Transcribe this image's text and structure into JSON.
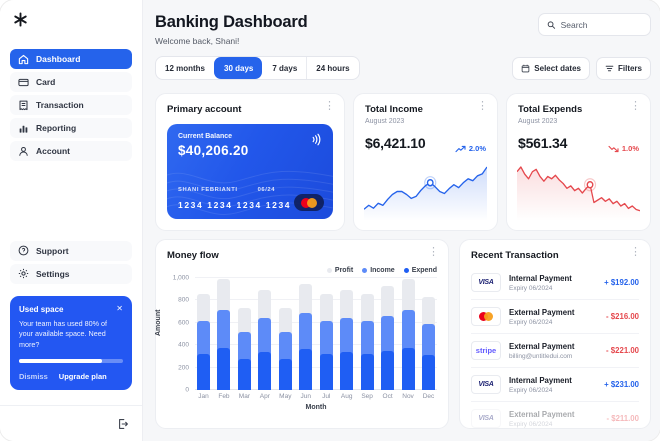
{
  "header": {
    "title": "Banking Dashboard",
    "subtitle": "Welcome back, Shani!",
    "search_placeholder": "Search"
  },
  "sidebar": {
    "nav": [
      {
        "label": "Dashboard",
        "active": true
      },
      {
        "label": "Card"
      },
      {
        "label": "Transaction"
      },
      {
        "label": "Reporting"
      },
      {
        "label": "Account"
      }
    ],
    "support_label": "Support",
    "settings_label": "Settings",
    "used_space": {
      "title": "Used space",
      "body": "Your team has used 80% of your available space. Need more?",
      "percent_used": "80%",
      "dismiss_label": "Dismiss",
      "upgrade_label": "Upgrade plan"
    }
  },
  "filters": {
    "ranges": [
      "12 months",
      "30 days",
      "7 days",
      "24 hours"
    ],
    "active_range": "30 days",
    "select_dates_label": "Select dates",
    "filters_label": "Filters"
  },
  "primary_account": {
    "title": "Primary account",
    "balance_label": "Current Balance",
    "balance": "$40,206.20",
    "card_holder": "SHANI FEBRIANTI",
    "card_expiry": "06/24",
    "card_number": "1234 1234 1234 1234"
  },
  "total_income": {
    "title": "Total Income",
    "period": "August 2023",
    "value": "$6,421.10",
    "change": "2.0%",
    "trend": "up"
  },
  "total_expends": {
    "title": "Total Expends",
    "period": "August 2023",
    "value": "$561.34",
    "change": "1.0%",
    "trend": "down"
  },
  "money_flow": {
    "title": "Money flow"
  },
  "transactions": {
    "title": "Recent Transaction",
    "rows": [
      {
        "brand": "visa",
        "brand_text": "VISA",
        "title": "Internal Payment",
        "subtitle": "Expiry 06/2024",
        "amount": "+ $192.00",
        "direction": "credit"
      },
      {
        "brand": "mastercard",
        "title": "External Payment",
        "subtitle": "Expiry 06/2024",
        "amount": "- $216.00",
        "direction": "debit"
      },
      {
        "brand": "stripe",
        "brand_text": "stripe",
        "title": "External Payment",
        "subtitle": "billing@untitledui.com",
        "amount": "- $221.00",
        "direction": "debit"
      },
      {
        "brand": "visa",
        "brand_text": "VISA",
        "title": "Internal Payment",
        "subtitle": "Expiry 06/2024",
        "amount": "+ $231.00",
        "direction": "credit"
      },
      {
        "brand": "visa",
        "brand_text": "VISA",
        "title": "External Payment",
        "subtitle": "Expiry 06/2024",
        "amount": "- $211.00",
        "direction": "debit"
      }
    ]
  },
  "colors": {
    "accent_blue": "#2563eb",
    "bar_profit": "#e8eaef",
    "bar_income": "#5d8bf8",
    "bar_expend": "#1f5ef3",
    "income_line": "#2563eb",
    "expend_line": "#e5484d",
    "positive_amount": "#2563eb",
    "negative_amount": "#e5484d"
  },
  "chart_data": [
    {
      "type": "bar",
      "title": "Money flow",
      "xlabel": "Month",
      "ylabel": "Amount",
      "ylim": [
        0,
        1000
      ],
      "yticks": [
        0,
        200,
        400,
        600,
        800,
        1000
      ],
      "ytick_labels": [
        "0",
        "200",
        "400",
        "600",
        "800",
        "1,000"
      ],
      "grid": true,
      "legend_position": "top-right",
      "categories": [
        "Jan",
        "Feb",
        "Mar",
        "Apr",
        "May",
        "Jun",
        "Jul",
        "Aug",
        "Sep",
        "Oct",
        "Nov",
        "Dec"
      ],
      "series": [
        {
          "name": "Profit",
          "color": "#e8eaef",
          "values": [
            860,
            990,
            730,
            890,
            730,
            950,
            860,
            890,
            860,
            925,
            990,
            830
          ]
        },
        {
          "name": "Income",
          "color": "#5d8bf8",
          "values": [
            620,
            710,
            520,
            640,
            520,
            690,
            620,
            640,
            620,
            665,
            710,
            590
          ]
        },
        {
          "name": "Expend",
          "color": "#1f5ef3",
          "values": [
            325,
            375,
            275,
            340,
            275,
            365,
            325,
            340,
            325,
            350,
            375,
            315
          ]
        }
      ]
    },
    {
      "type": "line",
      "title": "Total Income",
      "color": "#2563eb",
      "axis": "hidden",
      "units": "relative",
      "values": [
        10,
        14,
        11,
        16,
        14,
        20,
        25,
        28,
        28,
        25,
        21,
        23,
        29,
        34,
        37,
        33,
        28,
        26,
        31,
        35,
        32,
        37,
        41,
        39,
        44,
        46,
        53
      ],
      "marker_index": 14
    },
    {
      "type": "line",
      "title": "Total Expends",
      "color": "#e5484d",
      "axis": "hidden",
      "units": "relative",
      "values": [
        40,
        44,
        38,
        34,
        40,
        42,
        36,
        32,
        36,
        34,
        37,
        33,
        30,
        26,
        28,
        24,
        26,
        22,
        26,
        29,
        14,
        16,
        18,
        15,
        17,
        13,
        15,
        11,
        13,
        9,
        11,
        8,
        7
      ],
      "marker_index": 19
    }
  ]
}
